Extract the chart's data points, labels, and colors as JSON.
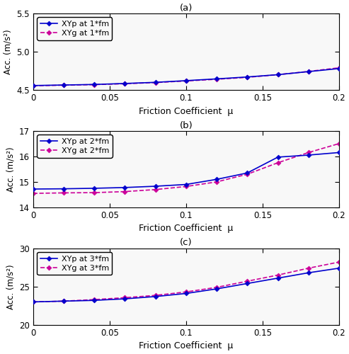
{
  "x": [
    0,
    0.02,
    0.04,
    0.06,
    0.08,
    0.1,
    0.12,
    0.14,
    0.16,
    0.18,
    0.2
  ],
  "panel_a": {
    "title": "(a)",
    "XYp": [
      4.558,
      4.565,
      4.572,
      4.585,
      4.6,
      4.622,
      4.645,
      4.67,
      4.7,
      4.74,
      4.78
    ],
    "XYg": [
      4.555,
      4.563,
      4.57,
      4.582,
      4.597,
      4.618,
      4.64,
      4.665,
      4.7,
      4.742,
      4.79
    ],
    "ylim": [
      4.5,
      5.5
    ],
    "yticks": [
      4.5,
      5.0,
      5.5
    ],
    "legend_XYp": "XYp at 1*fm",
    "legend_XYg": "XYg at 1*fm"
  },
  "panel_b": {
    "title": "(b)",
    "XYp": [
      14.72,
      14.73,
      14.75,
      14.78,
      14.83,
      14.9,
      15.1,
      15.35,
      15.97,
      16.05,
      16.15
    ],
    "XYg": [
      14.55,
      14.57,
      14.58,
      14.62,
      14.7,
      14.82,
      15.0,
      15.3,
      15.75,
      16.15,
      16.5
    ],
    "ylim": [
      14.0,
      17.0
    ],
    "yticks": [
      14,
      15,
      16,
      17
    ],
    "legend_XYp": "XYp at 2*fm",
    "legend_XYg": "XYg at 2*fm"
  },
  "panel_c": {
    "title": "(c)",
    "XYp": [
      23.0,
      23.1,
      23.2,
      23.4,
      23.7,
      24.1,
      24.7,
      25.4,
      26.1,
      26.8,
      27.4
    ],
    "XYg": [
      23.0,
      23.1,
      23.3,
      23.55,
      23.85,
      24.3,
      24.9,
      25.7,
      26.5,
      27.4,
      28.2
    ],
    "ylim": [
      20.0,
      30.0
    ],
    "yticks": [
      20,
      25,
      30
    ],
    "legend_XYp": "XYp at 3*fm",
    "legend_XYg": "XYg at 3*fm"
  },
  "xlabel": "Friction Coefficient  μ",
  "ylabel": "Acc. (m/s²)",
  "line_color_p": "#0000CD",
  "line_color_g": "#CC0099",
  "xlim": [
    0,
    0.2
  ],
  "xticks": [
    0,
    0.05,
    0.1,
    0.15,
    0.2
  ],
  "xticklabels": [
    "0",
    "0.05",
    "0.1",
    "0.15",
    "0.2"
  ]
}
